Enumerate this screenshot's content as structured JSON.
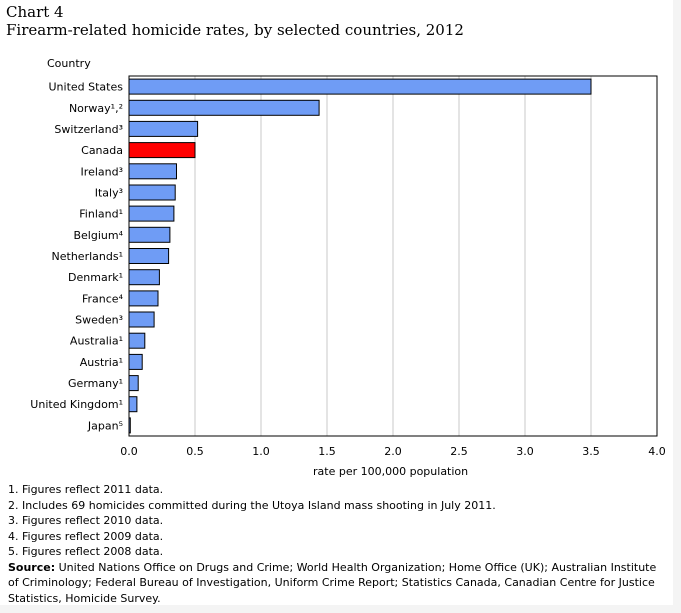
{
  "chart_label": "Chart 4",
  "chart_title": "Firearm-related homicide rates, by selected countries, 2012",
  "chart_data": {
    "type": "bar",
    "orientation": "horizontal",
    "title": "Firearm-related homicide rates, by selected countries, 2012",
    "ylabel": "Country",
    "xlabel": "rate per 100,000 population",
    "xlim": [
      0,
      4.0
    ],
    "x_ticks": [
      "0.0",
      "0.5",
      "1.0",
      "1.5",
      "2.0",
      "2.5",
      "3.0",
      "3.5",
      "4.0"
    ],
    "grid": true,
    "categories": [
      "United States",
      "Norway¹,²",
      "Switzerland³",
      "Canada",
      "Ireland³",
      "Italy³",
      "Finland¹",
      "Belgium⁴",
      "Netherlands¹",
      "Denmark¹",
      "France⁴",
      "Sweden³",
      "Australia¹",
      "Austria¹",
      "Germany¹",
      "United Kingdom¹",
      "Japan⁵"
    ],
    "values": [
      3.5,
      1.44,
      0.52,
      0.5,
      0.36,
      0.35,
      0.34,
      0.31,
      0.3,
      0.23,
      0.22,
      0.19,
      0.12,
      0.1,
      0.07,
      0.06,
      0.01
    ],
    "colors": {
      "default": "#6f9cf5",
      "highlight": "#ff0000",
      "highlight_category": "Canada",
      "edge": "#000000",
      "grid": "#c8c8c8"
    }
  },
  "notes": [
    "1. Figures reflect 2011 data.",
    "2. Includes 69 homicides committed during the Utoya Island mass shooting in July 2011.",
    "3. Figures reflect 2010 data.",
    "4. Figures reflect 2009 data.",
    "5. Figures reflect 2008 data."
  ],
  "source": {
    "label": "Source:",
    "text": "United Nations Office on Drugs and Crime; World Health Organization; Home Office (UK); Australian Institute of Criminology; Federal Bureau of Investigation, Uniform Crime Report; Statistics Canada, Canadian Centre for Justice Statistics, Homicide Survey."
  }
}
